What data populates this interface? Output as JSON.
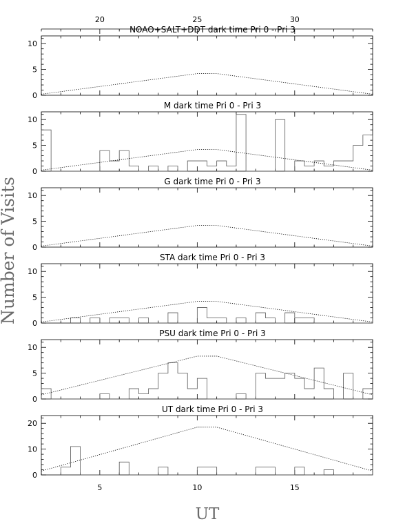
{
  "figure": {
    "ylabel": "Number of Visits",
    "xlabel": "UT",
    "top_axis_ticks": [
      20,
      25,
      30
    ],
    "bottom_axis_ticks": [
      5,
      10,
      15
    ]
  },
  "chart_data": [
    {
      "type": "histogram",
      "title": "NOAO+SALT+DDT dark time Pri 0 - Pri 3",
      "ylim": [
        0,
        11.5
      ],
      "yticks": [
        0,
        5,
        10
      ],
      "bin_width": 0.5,
      "bins": [],
      "envelope": [
        [
          2,
          0.2
        ],
        [
          10,
          4.2
        ],
        [
          11,
          4.2
        ],
        [
          19,
          0.2
        ]
      ]
    },
    {
      "type": "histogram",
      "title": "M    dark time Pri 0 - Pri 3",
      "ylim": [
        0,
        11.5
      ],
      "yticks": [
        0,
        5,
        10
      ],
      "bin_width": 0.5,
      "bins": [
        [
          2,
          8
        ],
        [
          2.5,
          0
        ],
        [
          5,
          4
        ],
        [
          5.5,
          2
        ],
        [
          6,
          4
        ],
        [
          6.5,
          1
        ],
        [
          7,
          0
        ],
        [
          7.5,
          1
        ],
        [
          8,
          0
        ],
        [
          8.5,
          1
        ],
        [
          9,
          0
        ],
        [
          9.5,
          2
        ],
        [
          10,
          2
        ],
        [
          10.5,
          1
        ],
        [
          11,
          2
        ],
        [
          11.5,
          1
        ],
        [
          12,
          11
        ],
        [
          12.5,
          0
        ],
        [
          14,
          10
        ],
        [
          14.5,
          0
        ],
        [
          15,
          2
        ],
        [
          15.5,
          1
        ],
        [
          16,
          2
        ],
        [
          16.5,
          1
        ],
        [
          17,
          2
        ],
        [
          18,
          5
        ],
        [
          18.5,
          7
        ],
        [
          19,
          5
        ]
      ],
      "envelope": [
        [
          2,
          0.2
        ],
        [
          10,
          4.2
        ],
        [
          11,
          4.2
        ],
        [
          19,
          0.2
        ]
      ]
    },
    {
      "type": "histogram",
      "title": "G    dark time Pri 0 - Pri 3",
      "ylim": [
        0,
        11.5
      ],
      "yticks": [
        0,
        5,
        10
      ],
      "bin_width": 0.5,
      "bins": [],
      "envelope": [
        [
          2,
          0.2
        ],
        [
          10,
          4.2
        ],
        [
          11,
          4.2
        ],
        [
          19,
          0.2
        ]
      ]
    },
    {
      "type": "histogram",
      "title": "STA    dark time Pri 0 - Pri 3",
      "ylim": [
        0,
        11.5
      ],
      "yticks": [
        0,
        5,
        10
      ],
      "bin_width": 0.5,
      "bins": [
        [
          3.5,
          1
        ],
        [
          4,
          0
        ],
        [
          4.5,
          1
        ],
        [
          5,
          0
        ],
        [
          5.5,
          1
        ],
        [
          6.5,
          0
        ],
        [
          7,
          1
        ],
        [
          7.5,
          0
        ],
        [
          8.5,
          2
        ],
        [
          9,
          0
        ],
        [
          10,
          3
        ],
        [
          10.5,
          1
        ],
        [
          11.5,
          0
        ],
        [
          12,
          1
        ],
        [
          12.5,
          0
        ],
        [
          13,
          2
        ],
        [
          13.5,
          1
        ],
        [
          14,
          0
        ],
        [
          14.5,
          2
        ],
        [
          15,
          1
        ],
        [
          16,
          0
        ],
        [
          19,
          1
        ]
      ],
      "envelope": [
        [
          2,
          0.2
        ],
        [
          10,
          4.2
        ],
        [
          11,
          4.2
        ],
        [
          19,
          0.2
        ]
      ]
    },
    {
      "type": "histogram",
      "title": "PSU    dark time Pri 0 - Pri 3",
      "ylim": [
        0,
        11.5
      ],
      "yticks": [
        0,
        5,
        10
      ],
      "bin_width": 0.5,
      "bins": [
        [
          2,
          2
        ],
        [
          2.5,
          0
        ],
        [
          5,
          1
        ],
        [
          5.5,
          0
        ],
        [
          6.5,
          2
        ],
        [
          7,
          1
        ],
        [
          7.5,
          2
        ],
        [
          8,
          5
        ],
        [
          8.5,
          7
        ],
        [
          9,
          5
        ],
        [
          9.5,
          2
        ],
        [
          10,
          4
        ],
        [
          10.5,
          0
        ],
        [
          11.5,
          0
        ],
        [
          12,
          1
        ],
        [
          12.5,
          0
        ],
        [
          13,
          5
        ],
        [
          13.5,
          4
        ],
        [
          14.5,
          5
        ],
        [
          15,
          4
        ],
        [
          15.5,
          2
        ],
        [
          16,
          6
        ],
        [
          16.5,
          2
        ],
        [
          17,
          0
        ],
        [
          17.5,
          5
        ],
        [
          18,
          0
        ],
        [
          18.5,
          2
        ],
        [
          19,
          1
        ]
      ],
      "envelope": [
        [
          2,
          0.8
        ],
        [
          10,
          8.3
        ],
        [
          11,
          8.3
        ],
        [
          19,
          0.8
        ]
      ]
    },
    {
      "type": "histogram",
      "title": "UT    dark time Pri 0 - Pri 3",
      "ylim": [
        0,
        23
      ],
      "yticks": [
        0,
        10,
        20
      ],
      "bin_width": 0.5,
      "bins": [
        [
          3,
          3
        ],
        [
          3.5,
          11
        ],
        [
          4,
          0
        ],
        [
          6,
          5
        ],
        [
          6.5,
          0
        ],
        [
          8,
          3
        ],
        [
          8.5,
          0
        ],
        [
          10,
          3
        ],
        [
          11,
          0
        ],
        [
          13,
          3
        ],
        [
          14,
          0
        ],
        [
          15,
          3
        ],
        [
          15.5,
          0
        ],
        [
          16.5,
          2
        ],
        [
          17,
          0
        ],
        [
          19,
          3
        ]
      ],
      "envelope": [
        [
          2,
          1.5
        ],
        [
          10,
          18.5
        ],
        [
          11,
          18.5
        ],
        [
          19,
          1.5
        ]
      ]
    }
  ]
}
